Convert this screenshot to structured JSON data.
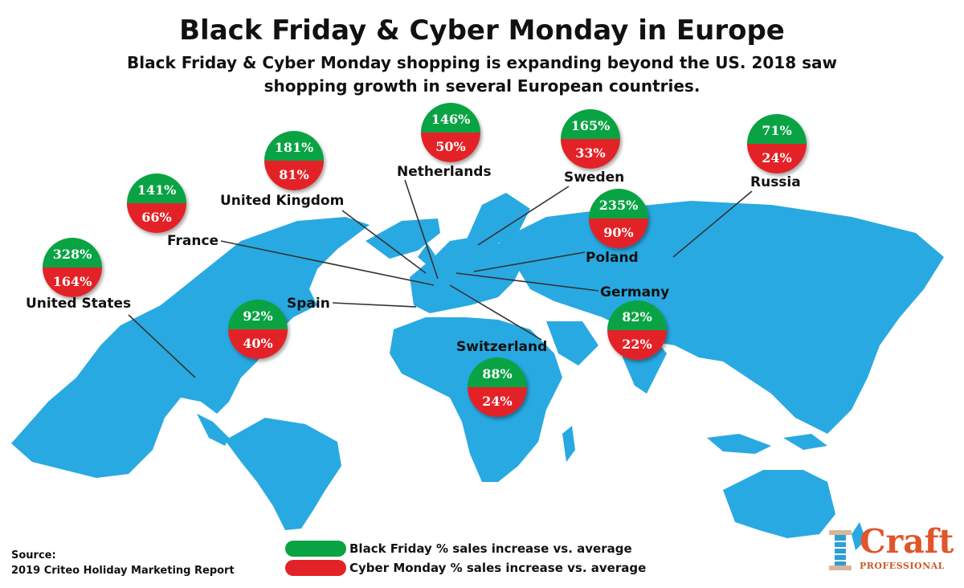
{
  "title": "Black Friday & Cyber Monday in Europe",
  "subtitle": "Black Friday & Cyber Monday shopping is expanding beyond the US. 2018 saw shopping growth in several European countries.",
  "colors": {
    "black_friday": "#0aa344",
    "cyber_monday": "#e32227",
    "land": "#29a9e1",
    "leader": "#333333",
    "logo": "#e0552a"
  },
  "countries": [
    {
      "name": "United States",
      "black_friday": "328%",
      "cyber_monday": "164%"
    },
    {
      "name": "France",
      "black_friday": "141%",
      "cyber_monday": "66%"
    },
    {
      "name": "United Kingdom",
      "black_friday": "181%",
      "cyber_monday": "81%"
    },
    {
      "name": "Netherlands",
      "black_friday": "146%",
      "cyber_monday": "50%"
    },
    {
      "name": "Sweden",
      "black_friday": "165%",
      "cyber_monday": "33%"
    },
    {
      "name": "Russia",
      "black_friday": "71%",
      "cyber_monday": "24%"
    },
    {
      "name": "Poland",
      "black_friday": "235%",
      "cyber_monday": "90%"
    },
    {
      "name": "Germany",
      "black_friday": "82%",
      "cyber_monday": "22%"
    },
    {
      "name": "Spain",
      "black_friday": "92%",
      "cyber_monday": "40%"
    },
    {
      "name": "Switzerland",
      "black_friday": "88%",
      "cyber_monday": "24%"
    }
  ],
  "legend": {
    "black_friday": "Black Friday % sales increase vs. average",
    "cyber_monday": "Cyber Monday % sales increase vs. average"
  },
  "source": {
    "label": "Source:",
    "text": "2019 Criteo Holiday Marketing Report"
  },
  "logo": {
    "word": "Craft",
    "sub": "PROFESSIONAL",
    "icon": "spool-icon"
  }
}
